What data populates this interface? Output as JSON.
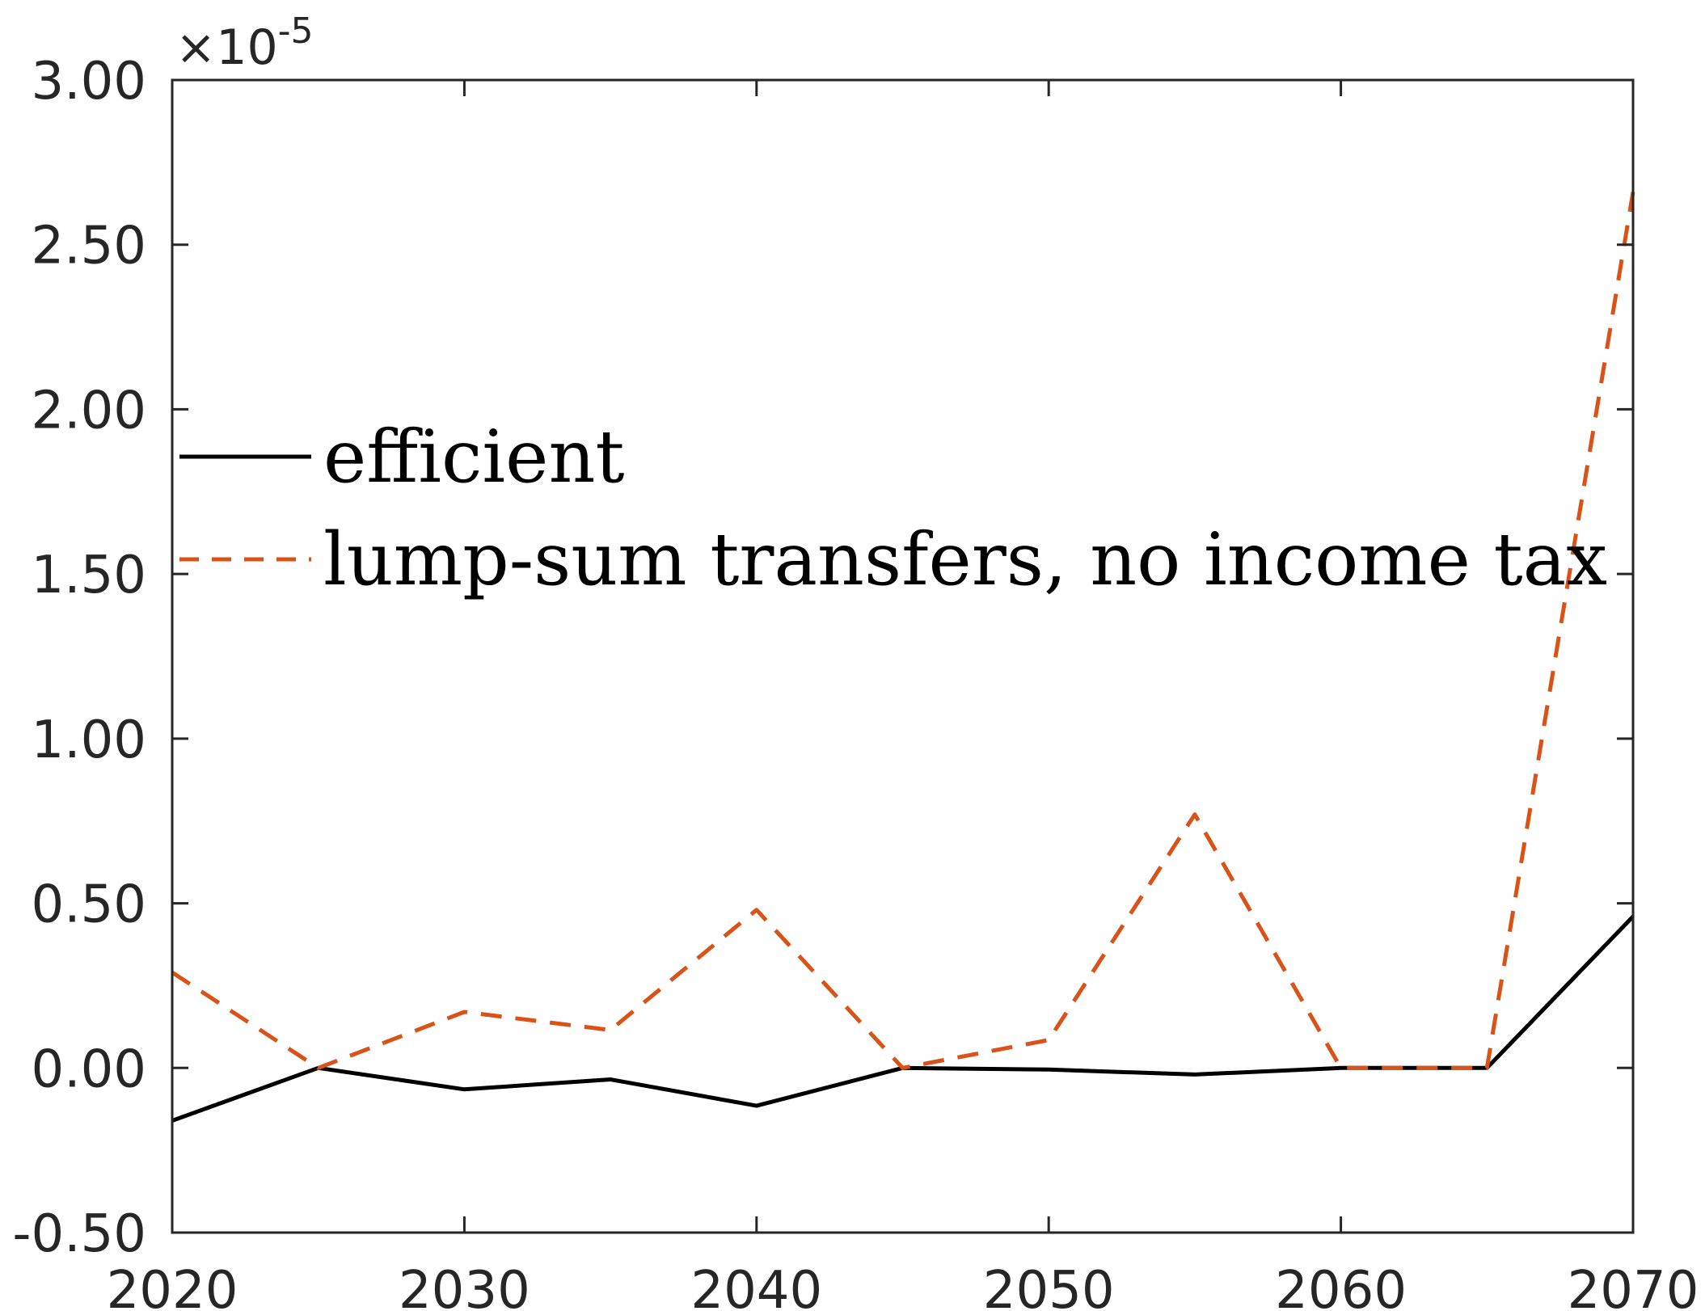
{
  "chart_data": {
    "type": "line",
    "title": "",
    "xlabel": "",
    "ylabel": "",
    "x": [
      2020,
      2025,
      2030,
      2035,
      2040,
      2045,
      2050,
      2055,
      2060,
      2065,
      2070
    ],
    "xlim": [
      2020,
      2070
    ],
    "ylim": [
      -0.5,
      3.0
    ],
    "y_exponent_label": "×10",
    "y_exponent_power": "-5",
    "x_ticks": [
      2020,
      2030,
      2040,
      2050,
      2060,
      2070
    ],
    "x_tick_labels": [
      "2020",
      "2030",
      "2040",
      "2050",
      "2060",
      "2070"
    ],
    "y_ticks": [
      -0.5,
      0.0,
      0.5,
      1.0,
      1.5,
      2.0,
      2.5,
      3.0
    ],
    "y_tick_labels": [
      "-0.50",
      "0.00",
      "0.50",
      "1.00",
      "1.50",
      "2.00",
      "2.50",
      "3.00"
    ],
    "grid": false,
    "legend_position": "center-left",
    "series": [
      {
        "name": "efficient",
        "color": "#000000",
        "style": "solid",
        "values": [
          -0.16,
          0.0,
          -0.065,
          -0.035,
          -0.115,
          0.0,
          -0.005,
          -0.02,
          0.0,
          0.0,
          0.46
        ]
      },
      {
        "name": "lump-sum transfers, no income tax",
        "color": "#D95319",
        "style": "dashed",
        "values": [
          0.29,
          0.0,
          0.17,
          0.115,
          0.48,
          0.0,
          0.085,
          0.77,
          0.0,
          0.0,
          2.66
        ]
      }
    ]
  }
}
